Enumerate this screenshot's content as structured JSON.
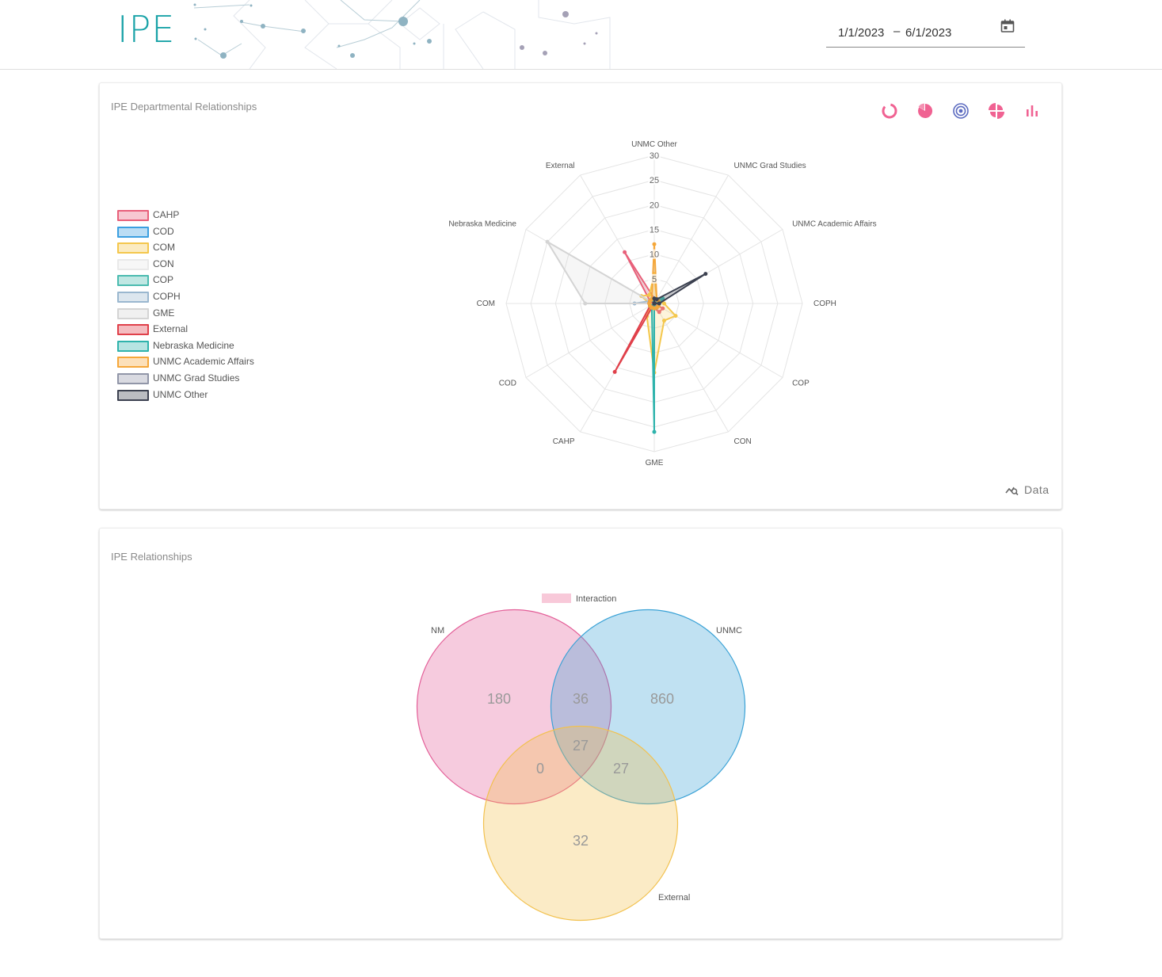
{
  "app": {
    "brand": "IPE"
  },
  "date_range": {
    "start": "1/1/2023",
    "separator": "–",
    "end": "6/1/2023"
  },
  "radar_card": {
    "title": "IPE Departmental Relationships",
    "toolbar": [
      "donut-chart-icon",
      "pie-chart-icon",
      "radar-chart-icon",
      "polar-area-icon",
      "bar-chart-icon"
    ],
    "data_label": "Data",
    "legend": [
      {
        "label": "CAHP",
        "color": "#e8607a"
      },
      {
        "label": "COD",
        "color": "#3b9fe0"
      },
      {
        "label": "COM",
        "color": "#f4c74c"
      },
      {
        "label": "CON",
        "color": "#e9e9e9"
      },
      {
        "label": "COP",
        "color": "#4bbbb0"
      },
      {
        "label": "COPH",
        "color": "#9ab7cf"
      },
      {
        "label": "GME",
        "color": "#d4d4d4"
      },
      {
        "label": "External",
        "color": "#e0404a"
      },
      {
        "label": "Nebraska Medicine",
        "color": "#2fb3ac"
      },
      {
        "label": "UNMC Academic Affairs",
        "color": "#f5a73a"
      },
      {
        "label": "UNMC Grad Studies",
        "color": "#9196a8"
      },
      {
        "label": "UNMC Other",
        "color": "#3c4150"
      }
    ]
  },
  "chart_data": [
    {
      "type": "radar",
      "title": "IPE Departmental Relationships",
      "axes": [
        "UNMC Other",
        "UNMC Grad Studies",
        "UNMC Academic Affairs",
        "COPH",
        "COP",
        "CON",
        "GME",
        "CAHP",
        "COD",
        "COM",
        "Nebraska Medicine",
        "External"
      ],
      "r_ticks": [
        5,
        10,
        15,
        20,
        25,
        30
      ],
      "r_range": [
        0,
        30
      ],
      "series": [
        {
          "name": "CAHP",
          "values": [
            1,
            1,
            0,
            0,
            2,
            2,
            1,
            1,
            1,
            1,
            1,
            12
          ]
        },
        {
          "name": "COD",
          "values": [
            0,
            0,
            0,
            0,
            0,
            1,
            1,
            0,
            0,
            1,
            1,
            0
          ]
        },
        {
          "name": "COM",
          "values": [
            6,
            1,
            1,
            2,
            5,
            4,
            14,
            3,
            1,
            1,
            3,
            2
          ]
        },
        {
          "name": "CON",
          "values": [
            0,
            0,
            0,
            0,
            0,
            0,
            0,
            0,
            0,
            0,
            0,
            0
          ]
        },
        {
          "name": "COP",
          "values": [
            1,
            1,
            2,
            1,
            1,
            1,
            1,
            1,
            1,
            1,
            1,
            1
          ]
        },
        {
          "name": "COPH",
          "values": [
            0,
            0,
            0,
            0,
            0,
            0,
            0,
            0,
            0,
            4,
            1,
            0
          ]
        },
        {
          "name": "GME",
          "values": [
            1,
            0,
            0,
            0,
            0,
            0,
            0,
            0,
            0,
            14,
            25,
            0
          ]
        },
        {
          "name": "External",
          "values": [
            0,
            0,
            0,
            0,
            0,
            0,
            0,
            16,
            1,
            1,
            1,
            0
          ]
        },
        {
          "name": "Nebraska Medicine",
          "values": [
            1,
            1,
            1,
            0,
            0,
            0,
            26,
            1,
            1,
            0,
            0,
            1
          ]
        },
        {
          "name": "UNMC Academic Affairs",
          "values": [
            12,
            1,
            1,
            1,
            1,
            1,
            1,
            1,
            1,
            1,
            1,
            1
          ]
        },
        {
          "name": "UNMC Grad Studies",
          "values": [
            0,
            0,
            0,
            0,
            0,
            0,
            0,
            0,
            0,
            0,
            0,
            0
          ]
        },
        {
          "name": "UNMC Other",
          "values": [
            1,
            1,
            12,
            1,
            0,
            0,
            0,
            0,
            0,
            0,
            0,
            0
          ]
        }
      ],
      "legend_position": "left"
    },
    {
      "type": "venn",
      "title": "IPE Relationships",
      "legend": [
        "Interaction"
      ],
      "sets": [
        "NM",
        "UNMC",
        "External"
      ],
      "regions": [
        {
          "sets": [
            "NM"
          ],
          "value": 180
        },
        {
          "sets": [
            "UNMC"
          ],
          "value": 860
        },
        {
          "sets": [
            "External"
          ],
          "value": 32
        },
        {
          "sets": [
            "NM",
            "UNMC"
          ],
          "value": 36
        },
        {
          "sets": [
            "NM",
            "External"
          ],
          "value": 0
        },
        {
          "sets": [
            "UNMC",
            "External"
          ],
          "value": 27
        },
        {
          "sets": [
            "NM",
            "UNMC",
            "External"
          ],
          "value": 27
        }
      ]
    }
  ],
  "venn_card": {
    "title": "IPE Relationships",
    "legend_label": "Interaction",
    "set_labels": {
      "nm": "NM",
      "unmc": "UNMC",
      "external": "External"
    },
    "counts": {
      "nm_only": "180",
      "unmc_only": "860",
      "external_only": "32",
      "nm_unmc": "36",
      "nm_external": "0",
      "unmc_external": "27",
      "all": "27"
    },
    "colors": {
      "nm": "#e35d97",
      "unmc": "#3aa2d6",
      "external": "#f2c14e",
      "legend": "#f8c9d9"
    }
  }
}
